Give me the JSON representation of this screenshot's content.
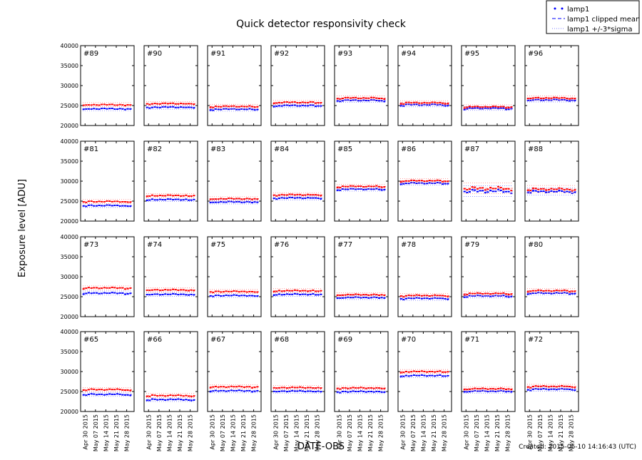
{
  "chart_data": {
    "type": "scatter",
    "title": "Quick detector responsivity check",
    "xlabel": "DATE-OBS",
    "ylabel": "Exposure level [ADU]",
    "footer": "Created: 2015-06-10 14:16:43 (UTC)",
    "ylim": [
      20000,
      40000
    ],
    "yticks": [
      "20000",
      "25000",
      "30000",
      "35000",
      "40000"
    ],
    "xlim": [
      "2015-04-27",
      "2015-06-02"
    ],
    "xticks": [
      {
        "date": "2015-04-30",
        "label": "Apr 30 2015"
      },
      {
        "date": "2015-05-07",
        "label": "May 07 2015"
      },
      {
        "date": "2015-05-14",
        "label": "May 14 2015"
      },
      {
        "date": "2015-05-21",
        "label": "May 21 2015"
      },
      {
        "date": "2015-05-28",
        "label": "May 28 2015"
      }
    ],
    "grid": false,
    "legend": {
      "placement": "top-right",
      "entries": [
        {
          "label": "lamp1",
          "style": "dots"
        },
        {
          "label": "lamp1 clipped mean",
          "style": "dashed"
        },
        {
          "label": "lamp1 +/-3*sigma",
          "style": "dotted"
        }
      ]
    },
    "colors": {
      "lamp1": "#0000ff",
      "second_series": "#ff0000"
    },
    "panels": [
      {
        "label": "#89",
        "lamp1": 24200,
        "second": 25200,
        "noise": 150
      },
      {
        "label": "#90",
        "lamp1": 24600,
        "second": 25500,
        "noise": 150
      },
      {
        "label": "#91",
        "lamp1": 24100,
        "second": 24800,
        "noise": 150
      },
      {
        "label": "#92",
        "lamp1": 25000,
        "second": 25800,
        "noise": 150
      },
      {
        "label": "#93",
        "lamp1": 26300,
        "second": 26900,
        "noise": 150
      },
      {
        "label": "#94",
        "lamp1": 25200,
        "second": 25700,
        "noise": 150
      },
      {
        "label": "#95",
        "lamp1": 24300,
        "second": 24700,
        "noise": 150
      },
      {
        "label": "#96",
        "lamp1": 26400,
        "second": 26900,
        "noise": 150
      },
      {
        "label": "#81",
        "lamp1": 23900,
        "second": 24900,
        "noise": 150
      },
      {
        "label": "#82",
        "lamp1": 25400,
        "second": 26400,
        "noise": 150
      },
      {
        "label": "#83",
        "lamp1": 24800,
        "second": 25600,
        "noise": 150
      },
      {
        "label": "#84",
        "lamp1": 25800,
        "second": 26600,
        "noise": 150
      },
      {
        "label": "#85",
        "lamp1": 28000,
        "second": 28700,
        "noise": 150
      },
      {
        "label": "#86",
        "lamp1": 29500,
        "second": 30100,
        "noise": 150
      },
      {
        "label": "#87",
        "lamp1": 27500,
        "second": 28200,
        "noise": 450
      },
      {
        "label": "#88",
        "lamp1": 27400,
        "second": 28000,
        "noise": 300
      },
      {
        "label": "#73",
        "lamp1": 25900,
        "second": 27200,
        "noise": 150
      },
      {
        "label": "#74",
        "lamp1": 25600,
        "second": 26700,
        "noise": 150
      },
      {
        "label": "#75",
        "lamp1": 25300,
        "second": 26300,
        "noise": 150
      },
      {
        "label": "#76",
        "lamp1": 25600,
        "second": 26500,
        "noise": 150
      },
      {
        "label": "#77",
        "lamp1": 24800,
        "second": 25500,
        "noise": 150
      },
      {
        "label": "#78",
        "lamp1": 24600,
        "second": 25300,
        "noise": 150
      },
      {
        "label": "#79",
        "lamp1": 25200,
        "second": 25800,
        "noise": 150
      },
      {
        "label": "#80",
        "lamp1": 25900,
        "second": 26500,
        "noise": 150
      },
      {
        "label": "#65",
        "lamp1": 24300,
        "second": 25500,
        "noise": 150
      },
      {
        "label": "#66",
        "lamp1": 23000,
        "second": 24000,
        "noise": 150
      },
      {
        "label": "#67",
        "lamp1": 25200,
        "second": 26200,
        "noise": 150
      },
      {
        "label": "#68",
        "lamp1": 25100,
        "second": 26000,
        "noise": 150
      },
      {
        "label": "#69",
        "lamp1": 25000,
        "second": 25900,
        "noise": 150
      },
      {
        "label": "#70",
        "lamp1": 29000,
        "second": 30000,
        "noise": 150
      },
      {
        "label": "#71",
        "lamp1": 25100,
        "second": 25700,
        "noise": 150
      },
      {
        "label": "#72",
        "lamp1": 25600,
        "second": 26300,
        "noise": 150
      }
    ]
  }
}
